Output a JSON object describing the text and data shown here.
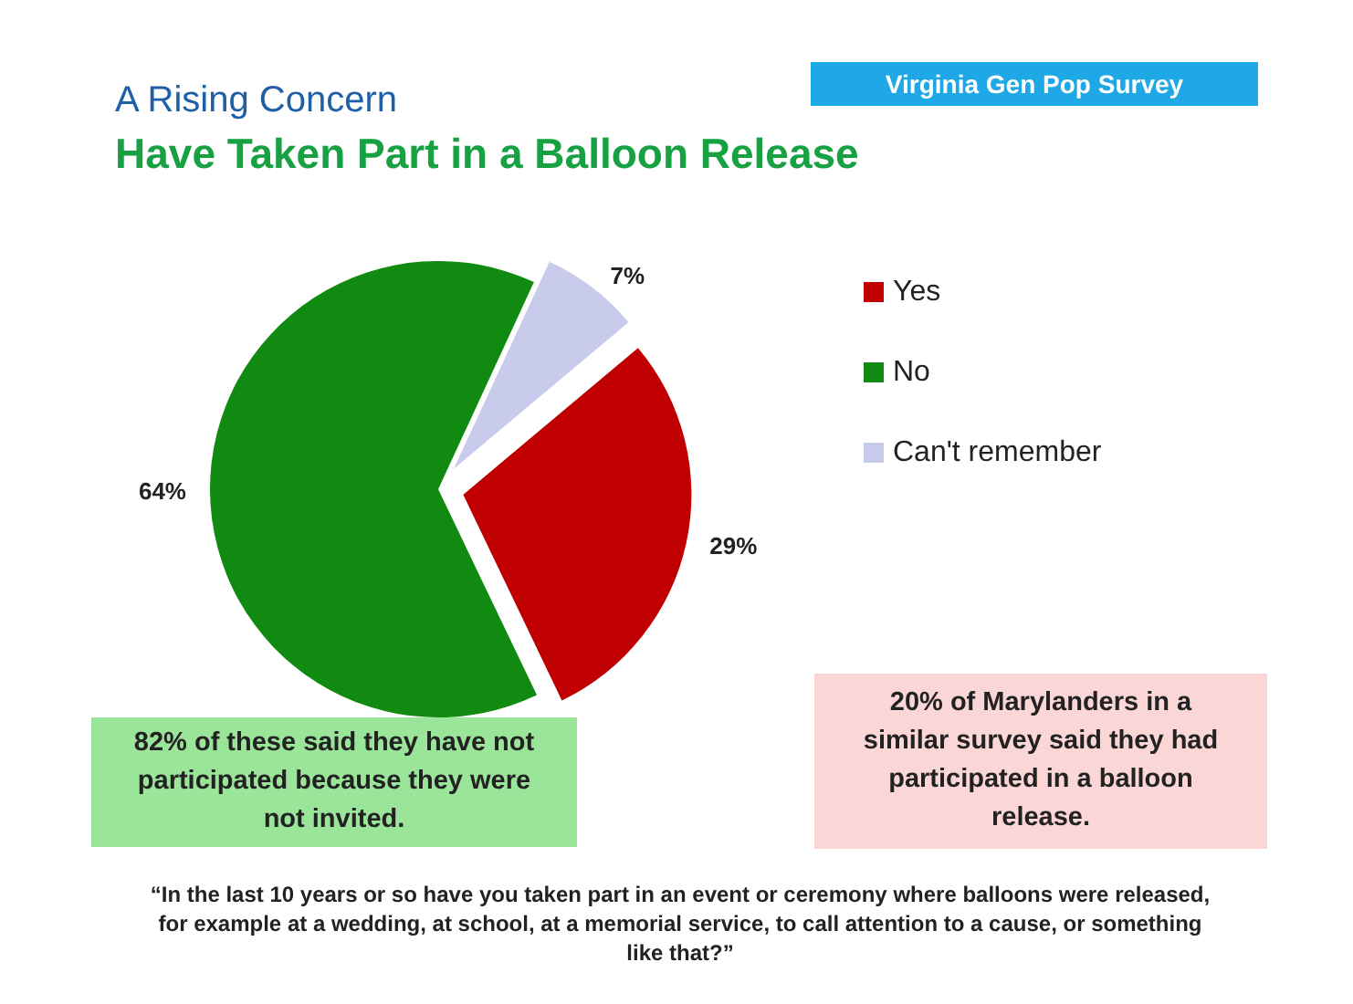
{
  "chart_data": {
    "type": "pie",
    "title": "A Rising Concern",
    "subtitle": "Have Taken Part in a Balloon Release",
    "categories": [
      "Yes",
      "No",
      "Can't remember"
    ],
    "values": [
      29,
      64,
      7
    ],
    "value_labels": [
      "29%",
      "64%",
      "7%"
    ],
    "colors": [
      "#c00000",
      "#108a10",
      "#c8cbec"
    ],
    "legend": "right",
    "annotations": [
      "Virginia Gen Pop Survey",
      "82% of these said they have not participated because they were not invited.",
      "20% of Marylanders in a similar survey said they had participated in a balloon release.",
      "“In the last 10 years or so have you taken part in an event or ceremony where balloons were released, for example at a wedding, at school, at a memorial service, to call attention to a cause, or something like that?”"
    ]
  }
}
